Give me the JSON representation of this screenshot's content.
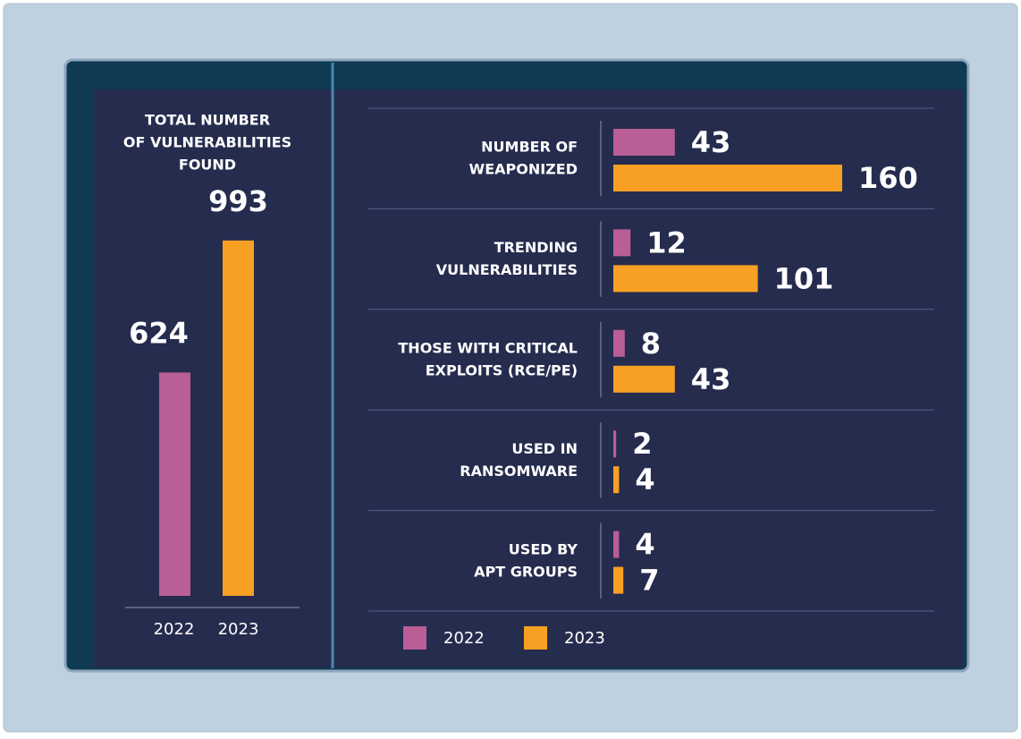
{
  "chart_data": [
    {
      "type": "bar",
      "title": [
        "TOTAL NUMBER",
        "OF VULNERABILITIES",
        "FOUND"
      ],
      "categories": [
        "2022",
        "2023"
      ],
      "values": [
        624,
        993
      ],
      "colors": [
        "#b95e96",
        "#f7a023"
      ]
    },
    {
      "type": "hbar",
      "categories": [
        [
          "NUMBER OF",
          "WEAPONIZED"
        ],
        [
          "TRENDING",
          "VULNERABILITIES"
        ],
        [
          "THOSE WITH CRITICAL",
          "EXPLOITS (RCE/PE)"
        ],
        [
          "USED IN",
          "RANSOMWARE"
        ],
        [
          "USED BY",
          "APT GROUPS"
        ]
      ],
      "series": [
        {
          "name": "2022",
          "color": "#b95e96",
          "values": [
            43,
            12,
            8,
            2,
            4
          ]
        },
        {
          "name": "2023",
          "color": "#f7a023",
          "values": [
            160,
            101,
            43,
            4,
            7
          ]
        }
      ],
      "legend": "bottom"
    }
  ]
}
